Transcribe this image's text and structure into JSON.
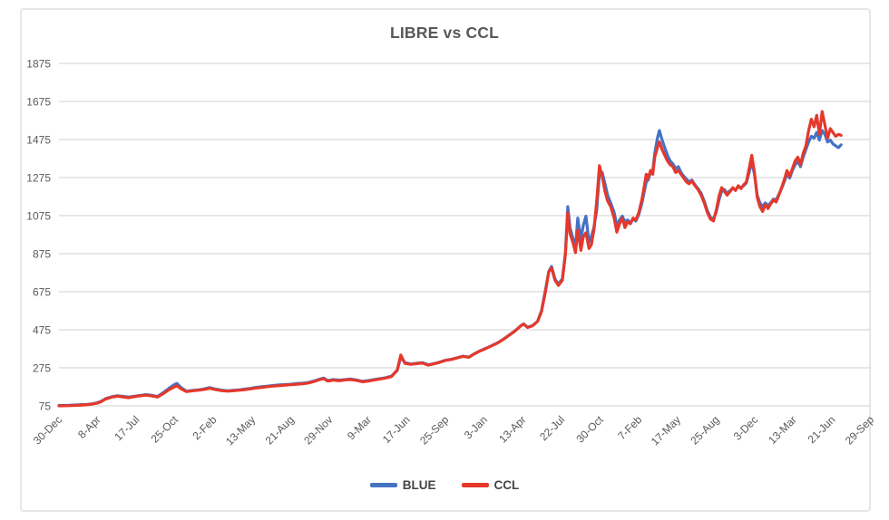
{
  "chart_data": {
    "type": "line",
    "title": "LIBRE vs CCL",
    "xlabel": "",
    "ylabel": "",
    "ylim": [
      75,
      1875
    ],
    "y_tick_step": 200,
    "xlim": [
      0,
      2100
    ],
    "x_tick_interval": 100,
    "x_tick_labels": [
      "30-Dec",
      "8-Apr",
      "17-Jul",
      "25-Oct",
      "2-Feb",
      "13-May",
      "21-Aug",
      "29-Nov",
      "9-Mar",
      "17-Jun",
      "25-Sep",
      "3-Jan",
      "13-Apr",
      "22-Jul",
      "30-Oct",
      "7-Feb",
      "17-May",
      "25-Aug",
      "3-Dec",
      "13-Mar",
      "21-Jun",
      "29-Sep"
    ],
    "grid": "horizontal",
    "legend_position": "bottom-center",
    "colors": {
      "grid": "#D9D9D9",
      "axis_text": "#595959",
      "title_text": "#595959"
    },
    "series": [
      {
        "name": "BLUE",
        "color": "#4472C4"
      },
      {
        "name": "CCL",
        "color": "#E5382B"
      }
    ],
    "points_format": [
      "day_index",
      "BLUE",
      "CCL"
    ],
    "points": [
      [
        0,
        77,
        75
      ],
      [
        25,
        78,
        76
      ],
      [
        50,
        80,
        78
      ],
      [
        70,
        82,
        80
      ],
      [
        85,
        85,
        84
      ],
      [
        100,
        92,
        90
      ],
      [
        110,
        100,
        98
      ],
      [
        120,
        112,
        110
      ],
      [
        135,
        122,
        120
      ],
      [
        150,
        128,
        126
      ],
      [
        165,
        125,
        122
      ],
      [
        180,
        121,
        118
      ],
      [
        200,
        127,
        125
      ],
      [
        215,
        131,
        129
      ],
      [
        225,
        134,
        131
      ],
      [
        240,
        130,
        127
      ],
      [
        255,
        124,
        121
      ],
      [
        270,
        145,
        140
      ],
      [
        285,
        168,
        160
      ],
      [
        298,
        186,
        174
      ],
      [
        305,
        193,
        180
      ],
      [
        315,
        172,
        165
      ],
      [
        330,
        152,
        150
      ],
      [
        345,
        156,
        154
      ],
      [
        360,
        159,
        157
      ],
      [
        375,
        164,
        161
      ],
      [
        390,
        171,
        167
      ],
      [
        405,
        163,
        160
      ],
      [
        420,
        158,
        155
      ],
      [
        435,
        154,
        152
      ],
      [
        450,
        157,
        154
      ],
      [
        465,
        159,
        157
      ],
      [
        480,
        163,
        160
      ],
      [
        495,
        167,
        164
      ],
      [
        510,
        172,
        169
      ],
      [
        525,
        176,
        172
      ],
      [
        540,
        179,
        176
      ],
      [
        555,
        182,
        179
      ],
      [
        570,
        185,
        181
      ],
      [
        585,
        187,
        184
      ],
      [
        600,
        189,
        186
      ],
      [
        615,
        192,
        189
      ],
      [
        630,
        194,
        191
      ],
      [
        645,
        198,
        195
      ],
      [
        660,
        206,
        203
      ],
      [
        675,
        216,
        213
      ],
      [
        685,
        221,
        218
      ],
      [
        695,
        208,
        205
      ],
      [
        710,
        213,
        210
      ],
      [
        725,
        210,
        207
      ],
      [
        740,
        213,
        211
      ],
      [
        755,
        216,
        213
      ],
      [
        770,
        211,
        209
      ],
      [
        785,
        204,
        201
      ],
      [
        800,
        208,
        205
      ],
      [
        815,
        213,
        210
      ],
      [
        830,
        218,
        216
      ],
      [
        845,
        223,
        221
      ],
      [
        860,
        231,
        229
      ],
      [
        875,
        261,
        263
      ],
      [
        884,
        331,
        342
      ],
      [
        895,
        302,
        298
      ],
      [
        910,
        295,
        293
      ],
      [
        925,
        299,
        297
      ],
      [
        940,
        302,
        300
      ],
      [
        955,
        291,
        289
      ],
      [
        970,
        297,
        296
      ],
      [
        985,
        305,
        304
      ],
      [
        1000,
        315,
        314
      ],
      [
        1015,
        320,
        319
      ],
      [
        1030,
        328,
        327
      ],
      [
        1045,
        336,
        335
      ],
      [
        1060,
        331,
        330
      ],
      [
        1075,
        350,
        349
      ],
      [
        1090,
        365,
        364
      ],
      [
        1105,
        378,
        377
      ],
      [
        1120,
        392,
        391
      ],
      [
        1135,
        407,
        406
      ],
      [
        1150,
        426,
        425
      ],
      [
        1165,
        448,
        447
      ],
      [
        1180,
        470,
        469
      ],
      [
        1195,
        497,
        496
      ],
      [
        1202,
        506,
        505
      ],
      [
        1212,
        488,
        487
      ],
      [
        1225,
        497,
        496
      ],
      [
        1238,
        520,
        519
      ],
      [
        1248,
        575,
        570
      ],
      [
        1258,
        680,
        670
      ],
      [
        1267,
        782,
        780
      ],
      [
        1274,
        808,
        800
      ],
      [
        1283,
        742,
        735
      ],
      [
        1292,
        715,
        708
      ],
      [
        1302,
        742,
        735
      ],
      [
        1310,
        880,
        870
      ],
      [
        1316,
        1122,
        1090
      ],
      [
        1322,
        1010,
        980
      ],
      [
        1330,
        952,
        930
      ],
      [
        1336,
        908,
        880
      ],
      [
        1342,
        1062,
        1000
      ],
      [
        1350,
        948,
        892
      ],
      [
        1356,
        1022,
        962
      ],
      [
        1363,
        1072,
        985
      ],
      [
        1371,
        935,
        902
      ],
      [
        1377,
        965,
        922
      ],
      [
        1384,
        1015,
        1002
      ],
      [
        1391,
        1105,
        1152
      ],
      [
        1398,
        1295,
        1338
      ],
      [
        1405,
        1302,
        1282
      ],
      [
        1412,
        1245,
        1205
      ],
      [
        1419,
        1182,
        1152
      ],
      [
        1427,
        1142,
        1122
      ],
      [
        1436,
        1092,
        1062
      ],
      [
        1443,
        1022,
        988
      ],
      [
        1450,
        1052,
        1032
      ],
      [
        1457,
        1072,
        1062
      ],
      [
        1464,
        1042,
        1012
      ],
      [
        1471,
        1052,
        1042
      ],
      [
        1478,
        1037,
        1032
      ],
      [
        1485,
        1057,
        1062
      ],
      [
        1492,
        1047,
        1052
      ],
      [
        1500,
        1082,
        1092
      ],
      [
        1508,
        1142,
        1162
      ],
      [
        1514,
        1202,
        1232
      ],
      [
        1519,
        1252,
        1292
      ],
      [
        1524,
        1262,
        1272
      ],
      [
        1530,
        1302,
        1312
      ],
      [
        1536,
        1312,
        1292
      ],
      [
        1541,
        1402,
        1382
      ],
      [
        1548,
        1482,
        1432
      ],
      [
        1553,
        1522,
        1462
      ],
      [
        1560,
        1472,
        1422
      ],
      [
        1567,
        1432,
        1392
      ],
      [
        1574,
        1392,
        1362
      ],
      [
        1581,
        1362,
        1342
      ],
      [
        1588,
        1347,
        1332
      ],
      [
        1595,
        1322,
        1302
      ],
      [
        1602,
        1332,
        1312
      ],
      [
        1609,
        1302,
        1292
      ],
      [
        1616,
        1282,
        1272
      ],
      [
        1623,
        1267,
        1252
      ],
      [
        1630,
        1252,
        1242
      ],
      [
        1637,
        1262,
        1257
      ],
      [
        1645,
        1237,
        1232
      ],
      [
        1653,
        1217,
        1212
      ],
      [
        1661,
        1192,
        1182
      ],
      [
        1669,
        1152,
        1142
      ],
      [
        1677,
        1102,
        1092
      ],
      [
        1685,
        1067,
        1057
      ],
      [
        1693,
        1057,
        1047
      ],
      [
        1700,
        1092,
        1102
      ],
      [
        1708,
        1162,
        1182
      ],
      [
        1714,
        1202,
        1222
      ],
      [
        1721,
        1212,
        1202
      ],
      [
        1728,
        1192,
        1182
      ],
      [
        1736,
        1207,
        1202
      ],
      [
        1743,
        1217,
        1222
      ],
      [
        1750,
        1212,
        1207
      ],
      [
        1757,
        1227,
        1232
      ],
      [
        1764,
        1222,
        1217
      ],
      [
        1771,
        1232,
        1237
      ],
      [
        1778,
        1247,
        1252
      ],
      [
        1785,
        1302,
        1322
      ],
      [
        1792,
        1357,
        1392
      ],
      [
        1799,
        1292,
        1302
      ],
      [
        1806,
        1182,
        1172
      ],
      [
        1813,
        1142,
        1122
      ],
      [
        1820,
        1122,
        1097
      ],
      [
        1827,
        1142,
        1132
      ],
      [
        1834,
        1127,
        1112
      ],
      [
        1841,
        1142,
        1137
      ],
      [
        1848,
        1162,
        1157
      ],
      [
        1855,
        1157,
        1147
      ],
      [
        1862,
        1187,
        1182
      ],
      [
        1869,
        1217,
        1222
      ],
      [
        1876,
        1252,
        1262
      ],
      [
        1883,
        1292,
        1312
      ],
      [
        1890,
        1272,
        1282
      ],
      [
        1897,
        1312,
        1322
      ],
      [
        1904,
        1342,
        1362
      ],
      [
        1911,
        1362,
        1382
      ],
      [
        1918,
        1332,
        1342
      ],
      [
        1925,
        1382,
        1402
      ],
      [
        1932,
        1422,
        1442
      ],
      [
        1939,
        1462,
        1522
      ],
      [
        1946,
        1492,
        1582
      ],
      [
        1953,
        1482,
        1542
      ],
      [
        1960,
        1512,
        1602
      ],
      [
        1967,
        1472,
        1502
      ],
      [
        1974,
        1522,
        1622
      ],
      [
        1981,
        1502,
        1552
      ],
      [
        1988,
        1462,
        1482
      ],
      [
        1995,
        1472,
        1532
      ],
      [
        2002,
        1452,
        1512
      ],
      [
        2009,
        1442,
        1492
      ],
      [
        2016,
        1432,
        1502
      ],
      [
        2023,
        1447,
        1497
      ]
    ]
  }
}
